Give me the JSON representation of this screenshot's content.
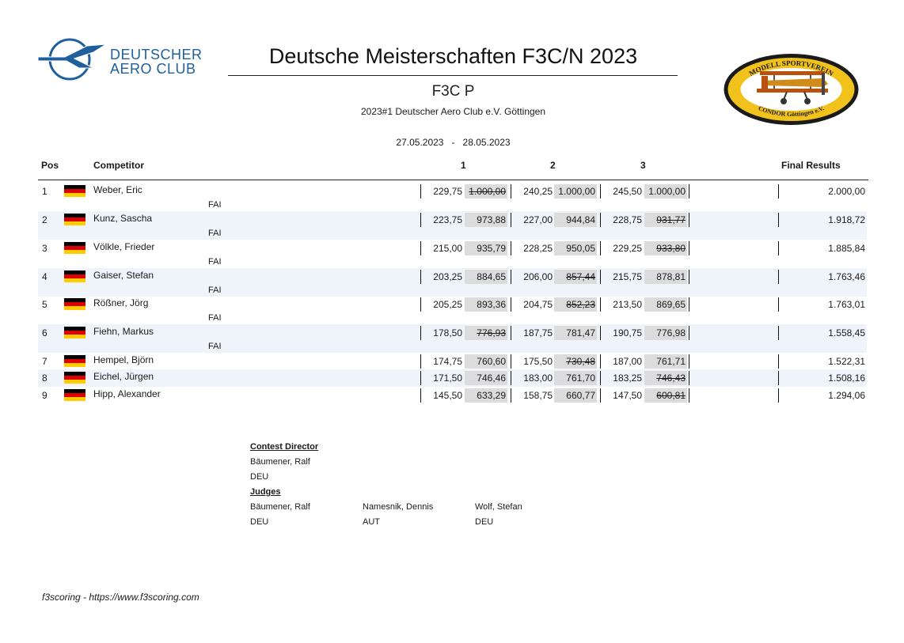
{
  "header": {
    "org_logo_line1": "DEUTSCHER",
    "org_logo_line2": "AERO CLUB",
    "title": "Deutsche Meisterschaften F3C/N 2023",
    "class": "F3C P",
    "event": "2023#1 Deutscher Aero Club e.V. Göttingen",
    "date_from": "27.05.2023",
    "date_sep": "-",
    "date_to": "28.05.2023",
    "club_logo_top": "MODELL SPORTVEREIN",
    "club_logo_bottom": "CONDOR Göttingen e.V."
  },
  "table": {
    "headers": {
      "pos": "Pos",
      "competitor": "Competitor",
      "r1": "1",
      "r2": "2",
      "r3": "3",
      "final": "Final Results"
    },
    "rows": [
      {
        "pos": "1",
        "name": "Weber, Eric",
        "fai": "FAI",
        "country_flag": "germany-flag",
        "rounds": [
          {
            "raw": "229,75",
            "score": "1.000,00",
            "discarded": true
          },
          {
            "raw": "240,25",
            "score": "1.000,00",
            "discarded": false
          },
          {
            "raw": "245,50",
            "score": "1.000,00",
            "discarded": false
          }
        ],
        "final": "2.000,00"
      },
      {
        "pos": "2",
        "name": "Kunz, Sascha",
        "fai": "FAI",
        "country_flag": "germany-flag",
        "rounds": [
          {
            "raw": "223,75",
            "score": "973,88",
            "discarded": false
          },
          {
            "raw": "227,00",
            "score": "944,84",
            "discarded": false
          },
          {
            "raw": "228,75",
            "score": "931,77",
            "discarded": true
          }
        ],
        "final": "1.918,72"
      },
      {
        "pos": "3",
        "name": "Völkle, Frieder",
        "fai": "FAI",
        "country_flag": "germany-flag",
        "rounds": [
          {
            "raw": "215,00",
            "score": "935,79",
            "discarded": false
          },
          {
            "raw": "228,25",
            "score": "950,05",
            "discarded": false
          },
          {
            "raw": "229,25",
            "score": "933,80",
            "discarded": true
          }
        ],
        "final": "1.885,84"
      },
      {
        "pos": "4",
        "name": "Gaiser, Stefan",
        "fai": "FAI",
        "country_flag": "germany-flag",
        "rounds": [
          {
            "raw": "203,25",
            "score": "884,65",
            "discarded": false
          },
          {
            "raw": "206,00",
            "score": "857,44",
            "discarded": true
          },
          {
            "raw": "215,75",
            "score": "878,81",
            "discarded": false
          }
        ],
        "final": "1.763,46"
      },
      {
        "pos": "5",
        "name": "Rößner, Jörg",
        "fai": "FAI",
        "country_flag": "germany-flag",
        "rounds": [
          {
            "raw": "205,25",
            "score": "893,36",
            "discarded": false
          },
          {
            "raw": "204,75",
            "score": "852,23",
            "discarded": true
          },
          {
            "raw": "213,50",
            "score": "869,65",
            "discarded": false
          }
        ],
        "final": "1.763,01"
      },
      {
        "pos": "6",
        "name": "Fiehn, Markus",
        "fai": "FAI",
        "country_flag": "germany-flag",
        "rounds": [
          {
            "raw": "178,50",
            "score": "776,93",
            "discarded": true
          },
          {
            "raw": "187,75",
            "score": "781,47",
            "discarded": false
          },
          {
            "raw": "190,75",
            "score": "776,98",
            "discarded": false
          }
        ],
        "final": "1.558,45"
      },
      {
        "pos": "7",
        "name": "Hempel, Björn",
        "fai": "",
        "country_flag": "germany-flag",
        "rounds": [
          {
            "raw": "174,75",
            "score": "760,60",
            "discarded": false
          },
          {
            "raw": "175,50",
            "score": "730,48",
            "discarded": true
          },
          {
            "raw": "187,00",
            "score": "761,71",
            "discarded": false
          }
        ],
        "final": "1.522,31"
      },
      {
        "pos": "8",
        "name": "Eichel, Jürgen",
        "fai": "",
        "country_flag": "germany-flag",
        "rounds": [
          {
            "raw": "171,50",
            "score": "746,46",
            "discarded": false
          },
          {
            "raw": "183,00",
            "score": "761,70",
            "discarded": false
          },
          {
            "raw": "183,25",
            "score": "746,43",
            "discarded": true
          }
        ],
        "final": "1.508,16"
      },
      {
        "pos": "9",
        "name": "Hipp, Alexander",
        "fai": "",
        "country_flag": "germany-flag",
        "rounds": [
          {
            "raw": "145,50",
            "score": "633,29",
            "discarded": false
          },
          {
            "raw": "158,75",
            "score": "660,77",
            "discarded": false
          },
          {
            "raw": "147,50",
            "score": "600,81",
            "discarded": true
          }
        ],
        "final": "1.294,06"
      }
    ]
  },
  "officials": {
    "director_heading": "Contest Director",
    "director": {
      "name": "Bäumener, Ralf",
      "country": "DEU"
    },
    "judges_heading": "Judges",
    "judges": [
      {
        "name": "Bäumener, Ralf",
        "country": "DEU"
      },
      {
        "name": "Namesnik, Dennis",
        "country": "AUT"
      },
      {
        "name": "Wolf, Stefan",
        "country": "DEU"
      }
    ]
  },
  "footer": "f3scoring - https://www.f3scoring.com",
  "colors": {
    "dac_blue": "#1f5f9c",
    "row_shade": "#eef4fa",
    "score_bg": "#dcdcdc",
    "flag_black": "#000000",
    "flag_red": "#dd0000",
    "flag_gold": "#ffcc00"
  }
}
